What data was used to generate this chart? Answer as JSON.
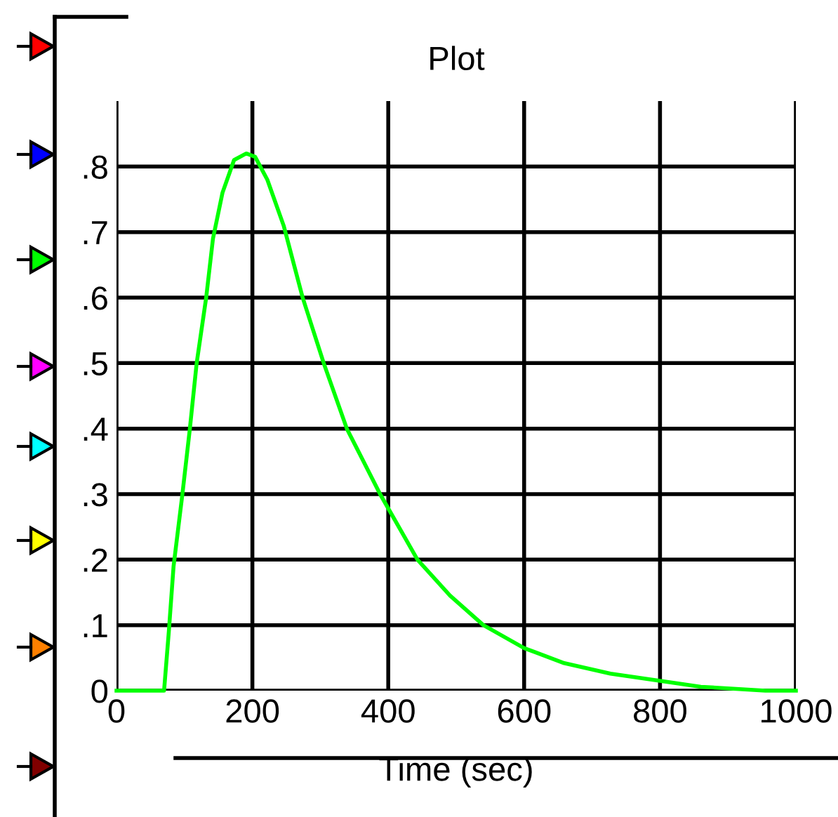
{
  "chart_data": {
    "type": "line",
    "title": "Plot",
    "xlabel": "Time (sec)",
    "x": [
      0,
      70,
      77,
      84,
      97,
      108,
      118,
      132,
      142,
      156,
      173,
      191,
      204,
      222,
      246,
      274,
      305,
      339,
      388,
      443,
      491,
      540,
      600,
      659,
      727,
      800,
      860,
      955,
      1000
    ],
    "series": [
      {
        "color": "#00ff00",
        "values": [
          0,
          0,
          0.09,
          0.19,
          0.3,
          0.4,
          0.5,
          0.6,
          0.69,
          0.76,
          0.81,
          0.82,
          0.815,
          0.78,
          0.71,
          0.6,
          0.5,
          0.4,
          0.3,
          0.2,
          0.145,
          0.1,
          0.065,
          0.042,
          0.026,
          0.015,
          0.006,
          0,
          0
        ]
      }
    ],
    "xlim": [
      0,
      1000
    ],
    "xticks": [
      0,
      200,
      400,
      600,
      800,
      1000
    ],
    "ylim": [
      0,
      0.9
    ],
    "yticks": [
      0,
      {
        "value": 0.1,
        "label": ".1"
      },
      {
        "value": 0.2,
        "label": ".2"
      },
      {
        "value": 0.3,
        "label": ".3"
      },
      {
        "value": 0.4,
        "label": ".4"
      },
      {
        "value": 0.5,
        "label": ".5"
      },
      {
        "value": 0.6,
        "label": ".6"
      },
      {
        "value": 0.7,
        "label": ".7"
      },
      {
        "value": 0.8,
        "label": ".8"
      }
    ],
    "grid": true,
    "legend": false
  }
}
